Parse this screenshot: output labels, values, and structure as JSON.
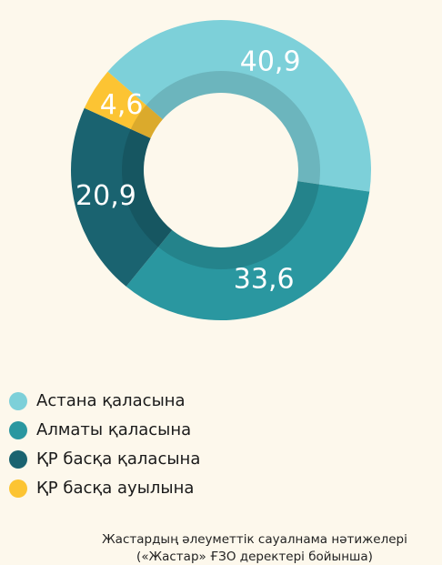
{
  "chart_data": {
    "type": "pie",
    "categories": [
      "Астана қаласына",
      "Алматы қаласына",
      "ҚР басқа қаласына",
      "ҚР басқа ауылына"
    ],
    "values": [
      40.9,
      33.6,
      20.9,
      4.6
    ],
    "value_labels": [
      "40,9",
      "33,6",
      "20,9",
      "4,6"
    ],
    "colors": [
      "#7dd0d9",
      "#2a97a0",
      "#1a6370",
      "#fcc433"
    ],
    "footnote": [
      "Жастардың әлеуметтік сауалнама нәтижелері",
      "(«Жастар» ҒЗО деректері бойынша)"
    ]
  }
}
